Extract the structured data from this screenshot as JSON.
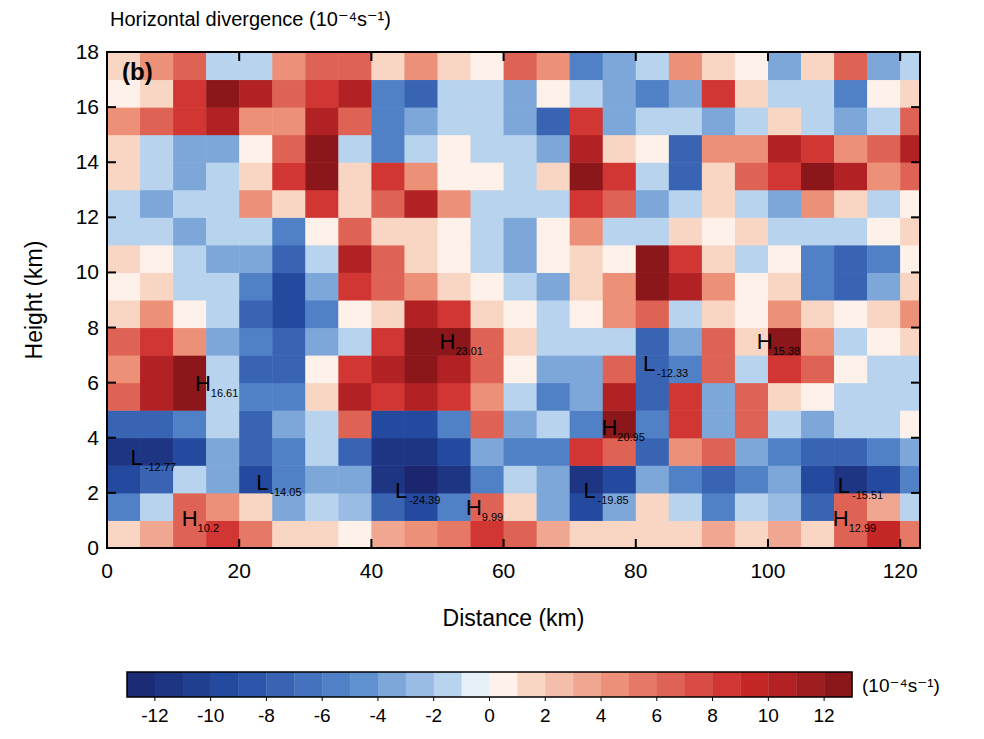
{
  "chart_data": {
    "type": "heatmap",
    "title": "Horizontal divergence (10⁻⁴s⁻¹)",
    "panel": "(b)",
    "x_label": "Distance (km)",
    "y_label": "Height (km)",
    "xlim": [
      0,
      123
    ],
    "ylim": [
      0,
      18
    ],
    "xticks": [
      0,
      20,
      40,
      60,
      80,
      100,
      120
    ],
    "yticks": [
      0,
      2,
      4,
      6,
      8,
      10,
      12,
      14,
      16,
      18
    ],
    "heatmap": {
      "x": [
        2.5,
        7.5,
        12.5,
        17.5,
        22.5,
        27.5,
        32.5,
        37.5,
        42.5,
        47.5,
        52.5,
        57.5,
        62.5,
        67.5,
        72.5,
        77.5,
        82.5,
        87.5,
        92.5,
        97.5,
        102.5,
        107.5,
        112.5,
        117.5,
        122.5
      ],
      "y": [
        0.5,
        1.5,
        2.5,
        3.5,
        4.5,
        5.5,
        6.5,
        7.5,
        8.5,
        9.5,
        10.5,
        11.5,
        12.5,
        13.5,
        14.5,
        15.5,
        16.5,
        17.5
      ],
      "values": [
        [
          2,
          3,
          6,
          8,
          5,
          2,
          1,
          0,
          3,
          4,
          5,
          8,
          6,
          3,
          2,
          1,
          2,
          1,
          3,
          2,
          3,
          2,
          6,
          9,
          5
        ],
        [
          -6,
          -2,
          6,
          4,
          2,
          -4,
          -2,
          -3,
          -8,
          -10,
          -6,
          6,
          2,
          -4,
          -10,
          -4,
          2,
          -2,
          -6,
          -2,
          -3,
          -8,
          6,
          3,
          -2
        ],
        [
          -10,
          -8,
          -2,
          -4,
          -10,
          -6,
          -4,
          -4,
          -12,
          -14,
          -12,
          -6,
          -2,
          -4,
          -12,
          -10,
          -4,
          -6,
          -8,
          -6,
          -4,
          -10,
          -12,
          -10,
          -6
        ],
        [
          -12,
          -12,
          -10,
          -4,
          -8,
          -6,
          -2,
          -8,
          -12,
          -12,
          -10,
          -4,
          -6,
          -6,
          8,
          6,
          -8,
          4,
          6,
          -4,
          -6,
          -8,
          -8,
          -6,
          -4
        ],
        [
          -8,
          -8,
          -6,
          -2,
          -8,
          -4,
          -2,
          6,
          -10,
          -10,
          -6,
          6,
          -4,
          -2,
          -6,
          12,
          -6,
          8,
          -4,
          6,
          -2,
          -4,
          -2,
          -2,
          0
        ],
        [
          6,
          10,
          12,
          -2,
          -6,
          -6,
          2,
          10,
          8,
          10,
          8,
          4,
          -2,
          -6,
          -4,
          10,
          -8,
          8,
          -4,
          6,
          2,
          0,
          -2,
          -2,
          -2
        ],
        [
          4,
          10,
          12,
          -2,
          -8,
          -8,
          0,
          8,
          10,
          12,
          10,
          6,
          0,
          -4,
          -4,
          6,
          -8,
          -6,
          6,
          -2,
          8,
          6,
          0,
          -2,
          -2
        ],
        [
          6,
          8,
          4,
          -4,
          -6,
          -8,
          -4,
          -2,
          8,
          12,
          12,
          6,
          2,
          -2,
          -2,
          -2,
          -8,
          -4,
          6,
          2,
          12,
          4,
          -2,
          0,
          2
        ],
        [
          2,
          4,
          0,
          -2,
          -8,
          -10,
          -6,
          0,
          2,
          10,
          8,
          2,
          0,
          -2,
          0,
          4,
          6,
          -2,
          2,
          0,
          4,
          2,
          0,
          2,
          4
        ],
        [
          0,
          2,
          -2,
          -2,
          -6,
          -10,
          -4,
          8,
          6,
          4,
          2,
          0,
          -2,
          -4,
          2,
          4,
          12,
          10,
          4,
          0,
          2,
          -6,
          -8,
          -4,
          2
        ],
        [
          2,
          0,
          -2,
          -4,
          -4,
          -8,
          -2,
          10,
          6,
          2,
          0,
          -2,
          -4,
          0,
          2,
          0,
          12,
          8,
          2,
          -2,
          0,
          -6,
          -8,
          -6,
          0
        ],
        [
          -2,
          -2,
          -4,
          -2,
          -2,
          -6,
          0,
          6,
          2,
          2,
          0,
          -2,
          -4,
          0,
          4,
          -2,
          -2,
          2,
          0,
          2,
          -2,
          -2,
          -2,
          0,
          2
        ],
        [
          -2,
          -4,
          -2,
          -2,
          4,
          2,
          8,
          2,
          6,
          10,
          4,
          -2,
          -2,
          -2,
          8,
          6,
          -4,
          -2,
          2,
          -2,
          -4,
          4,
          2,
          -2,
          0
        ],
        [
          2,
          -2,
          -4,
          -2,
          2,
          8,
          12,
          2,
          8,
          4,
          0,
          0,
          -2,
          2,
          12,
          8,
          -2,
          -8,
          2,
          6,
          8,
          12,
          10,
          4,
          6
        ],
        [
          2,
          -2,
          -4,
          -4,
          0,
          6,
          12,
          -2,
          -6,
          -2,
          0,
          -2,
          -2,
          -4,
          10,
          2,
          0,
          -8,
          4,
          4,
          10,
          8,
          4,
          6,
          10
        ],
        [
          4,
          6,
          8,
          10,
          4,
          4,
          10,
          6,
          -6,
          -4,
          -2,
          -2,
          -4,
          -8,
          8,
          -4,
          -2,
          -2,
          -4,
          -2,
          2,
          -2,
          -4,
          -2,
          6
        ],
        [
          0,
          2,
          8,
          12,
          10,
          6,
          8,
          10,
          -6,
          -8,
          -2,
          -2,
          -4,
          0,
          -2,
          -4,
          -6,
          -4,
          8,
          2,
          -2,
          -2,
          -6,
          0,
          2
        ],
        [
          2,
          4,
          6,
          -2,
          -2,
          4,
          6,
          6,
          2,
          4,
          2,
          0,
          6,
          4,
          -6,
          -4,
          -2,
          4,
          2,
          0,
          -4,
          2,
          6,
          -4,
          -2
        ]
      ]
    },
    "colorbar": {
      "range": [
        -13,
        13
      ],
      "ticks": [
        -12,
        -10,
        -8,
        -6,
        -4,
        -2,
        0,
        2,
        4,
        6,
        8,
        10,
        12
      ],
      "label": "(10⁻⁴s⁻¹)"
    },
    "annotations": [
      {
        "label": "H",
        "value": 16.61,
        "x": 14.5,
        "y": 6.0
      },
      {
        "label": "L",
        "value": -12.77,
        "x": 4.5,
        "y": 3.3
      },
      {
        "label": "H",
        "value": 10.2,
        "x": 12.5,
        "y": 1.1
      },
      {
        "label": "L",
        "value": -14.05,
        "x": 23.5,
        "y": 2.4
      },
      {
        "label": "L",
        "value": -24.39,
        "x": 44.5,
        "y": 2.1
      },
      {
        "label": "H",
        "value": 9.99,
        "x": 55.5,
        "y": 1.5
      },
      {
        "label": "H",
        "value": 23.01,
        "x": 51.5,
        "y": 7.5
      },
      {
        "label": "H",
        "value": 20.95,
        "x": 76.0,
        "y": 4.4
      },
      {
        "label": "L",
        "value": -12.33,
        "x": 82.0,
        "y": 6.7
      },
      {
        "label": "L",
        "value": -19.85,
        "x": 73.0,
        "y": 2.1
      },
      {
        "label": "H",
        "value": 15.38,
        "x": 99.5,
        "y": 7.5
      },
      {
        "label": "L",
        "value": -15.51,
        "x": 111.5,
        "y": 2.3
      },
      {
        "label": "H",
        "value": 12.99,
        "x": 111.0,
        "y": 1.1
      }
    ]
  }
}
